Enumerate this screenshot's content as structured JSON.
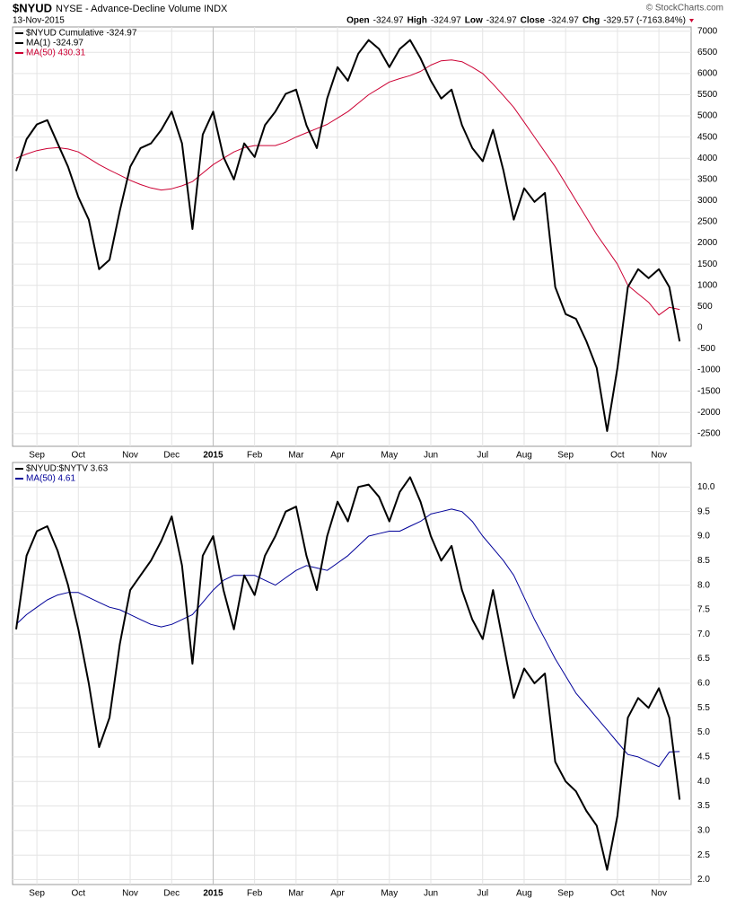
{
  "header": {
    "symbol": "$NYUD",
    "title": "NYSE - Advance-Decline Volume INDX",
    "date": "13-Nov-2015",
    "source": "© StockCharts.com",
    "quote": [
      "Open",
      "-324.97",
      "High",
      "-324.97",
      "Low",
      "-324.97",
      "Close",
      "-324.97",
      "Chg",
      "-329.57 (-7163.84%)"
    ]
  },
  "chart_data": [
    {
      "type": "line",
      "categories": [
        null,
        null,
        "Sep",
        null,
        null,
        null,
        "Oct",
        null,
        null,
        null,
        null,
        "Nov",
        null,
        null,
        null,
        "Dec",
        null,
        null,
        null,
        "2015",
        null,
        null,
        null,
        "Feb",
        null,
        null,
        null,
        "Mar",
        null,
        null,
        null,
        "Apr",
        null,
        null,
        null,
        null,
        "May",
        null,
        null,
        null,
        "Jun",
        null,
        null,
        null,
        null,
        "Jul",
        null,
        null,
        null,
        "Aug",
        null,
        null,
        null,
        "Sep",
        null,
        null,
        null,
        null,
        "Oct",
        null,
        null,
        null,
        "Nov",
        null,
        null
      ],
      "series": [
        {
          "name": "$NYUD Cumulative -324.97",
          "color": "#000000",
          "values": [
            3700,
            4450,
            4800,
            4900,
            4350,
            3800,
            3080,
            2550,
            1380,
            1600,
            2760,
            3800,
            4240,
            4350,
            4670,
            5100,
            4350,
            2330,
            4560,
            5100,
            4030,
            3500,
            4350,
            4030,
            4780,
            5100,
            5520,
            5620,
            4780,
            4240,
            5410,
            6150,
            5830,
            6470,
            6790,
            6580,
            6150,
            6580,
            6790,
            6360,
            5830,
            5410,
            5620,
            4780,
            4240,
            3930,
            4670,
            3710,
            2550,
            3290,
            2970,
            3180,
            960,
            320,
            210,
            -320,
            -950,
            -2440,
            -950,
            960,
            1380,
            1170,
            1380,
            960,
            -324.97
          ]
        },
        {
          "name": "MA(50) 430.31",
          "color": "#cc0033",
          "values": [
            4000,
            4100,
            4180,
            4230,
            4250,
            4220,
            4150,
            4000,
            3850,
            3720,
            3600,
            3480,
            3380,
            3300,
            3250,
            3280,
            3350,
            3450,
            3650,
            3850,
            4000,
            4150,
            4250,
            4300,
            4300,
            4300,
            4380,
            4500,
            4600,
            4700,
            4800,
            4950,
            5100,
            5300,
            5500,
            5650,
            5800,
            5880,
            5950,
            6050,
            6200,
            6300,
            6320,
            6280,
            6150,
            6000,
            5750,
            5480,
            5200,
            4850,
            4500,
            4150,
            3800,
            3400,
            3000,
            2600,
            2200,
            1850,
            1500,
            1000,
            800,
            600,
            300,
            480,
            430.31
          ]
        }
      ],
      "annotations": [
        "MA(1) -324.97"
      ],
      "ylim": [
        -2800,
        7100
      ],
      "yticks": [
        -2500,
        -2000,
        -1500,
        -1000,
        -500,
        0,
        500,
        1000,
        1500,
        2000,
        2500,
        3000,
        3500,
        4000,
        4500,
        5000,
        5500,
        6000,
        6500,
        7000
      ],
      "grid": true
    },
    {
      "type": "line",
      "categories": [
        null,
        null,
        "Sep",
        null,
        null,
        null,
        "Oct",
        null,
        null,
        null,
        null,
        "Nov",
        null,
        null,
        null,
        "Dec",
        null,
        null,
        null,
        "2015",
        null,
        null,
        null,
        "Feb",
        null,
        null,
        null,
        "Mar",
        null,
        null,
        null,
        "Apr",
        null,
        null,
        null,
        null,
        "May",
        null,
        null,
        null,
        "Jun",
        null,
        null,
        null,
        null,
        "Jul",
        null,
        null,
        null,
        "Aug",
        null,
        null,
        null,
        "Sep",
        null,
        null,
        null,
        null,
        "Oct",
        null,
        null,
        null,
        "Nov",
        null,
        null
      ],
      "series": [
        {
          "name": "$NYUD:$NYTV 3.63",
          "color": "#000000",
          "values": [
            7.1,
            8.6,
            9.1,
            9.2,
            8.7,
            8.0,
            7.1,
            6.0,
            4.7,
            5.3,
            6.8,
            7.9,
            8.2,
            8.5,
            8.9,
            9.4,
            8.4,
            6.4,
            8.6,
            9.0,
            7.9,
            7.1,
            8.2,
            7.8,
            8.6,
            9.0,
            9.5,
            9.6,
            8.6,
            7.9,
            9.0,
            9.7,
            9.3,
            10.0,
            10.05,
            9.8,
            9.3,
            9.9,
            10.2,
            9.7,
            9.0,
            8.5,
            8.8,
            7.9,
            7.3,
            6.9,
            7.9,
            6.8,
            5.7,
            6.3,
            6.0,
            6.2,
            4.4,
            4.0,
            3.8,
            3.4,
            3.1,
            2.2,
            3.3,
            5.3,
            5.7,
            5.5,
            5.9,
            5.3,
            3.63
          ]
        },
        {
          "name": "MA(50) 4.61",
          "color": "#000099",
          "values": [
            7.2,
            7.4,
            7.55,
            7.7,
            7.8,
            7.85,
            7.85,
            7.75,
            7.65,
            7.55,
            7.5,
            7.4,
            7.3,
            7.2,
            7.15,
            7.2,
            7.3,
            7.4,
            7.65,
            7.9,
            8.1,
            8.2,
            8.2,
            8.2,
            8.1,
            8.0,
            8.15,
            8.3,
            8.4,
            8.35,
            8.3,
            8.45,
            8.6,
            8.8,
            9.0,
            9.05,
            9.1,
            9.1,
            9.2,
            9.3,
            9.45,
            9.5,
            9.55,
            9.5,
            9.3,
            9.0,
            8.75,
            8.5,
            8.2,
            7.75,
            7.3,
            6.9,
            6.5,
            6.15,
            5.8,
            5.55,
            5.3,
            5.05,
            4.8,
            4.55,
            4.5,
            4.4,
            4.3,
            4.6,
            4.61
          ]
        }
      ],
      "ylim": [
        1.9,
        10.5
      ],
      "yticks": [
        {
          "value": 2,
          "label": "2.0"
        },
        2.5,
        {
          "value": 3,
          "label": "3.0"
        },
        3.5,
        {
          "value": 4,
          "label": "4.0"
        },
        4.5,
        {
          "value": 5,
          "label": "5.0"
        },
        5.5,
        {
          "value": 6,
          "label": "6.0"
        },
        6.5,
        {
          "value": 7,
          "label": "7.0"
        },
        7.5,
        {
          "value": 8,
          "label": "8.0"
        },
        8.5,
        {
          "value": 9,
          "label": "9.0"
        },
        9.5,
        {
          "value": 10,
          "label": "10.0"
        }
      ],
      "grid": true
    }
  ]
}
